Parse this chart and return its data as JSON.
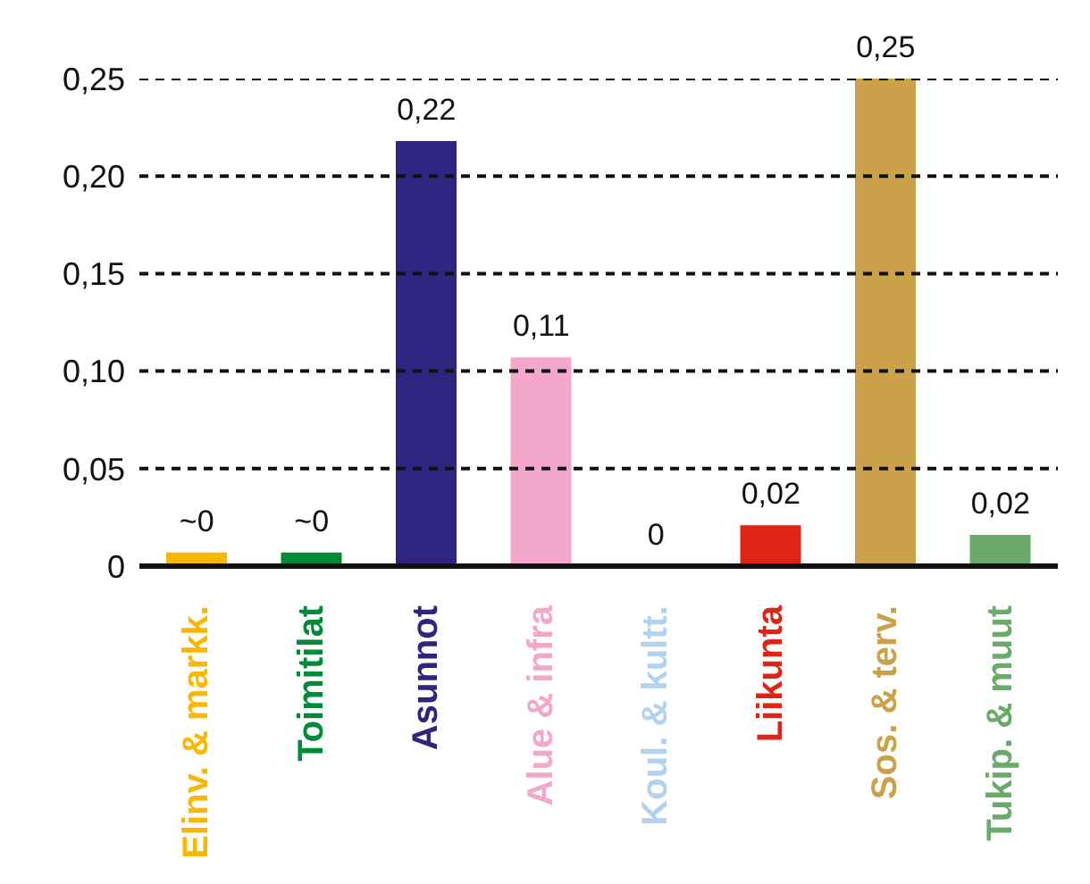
{
  "chart_data": {
    "type": "bar",
    "categories": [
      "Elinv. & markk.",
      "Toimitilat",
      "Asunnot",
      "Alue & infra",
      "Koul. & kultt.",
      "Liikunta",
      "Sos. & terv.",
      "Tukip. & muut"
    ],
    "values": [
      0.007,
      0.007,
      0.218,
      0.107,
      0,
      0.021,
      0.25,
      0.016
    ],
    "colors": [
      "#f9b800",
      "#008a3a",
      "#2f2580",
      "#f2a7cb",
      "#b3d2ee",
      "#de2415",
      "#cba14a",
      "#6aab6b"
    ],
    "value_labels": [
      "~0",
      "~0",
      "0,22",
      "0,11",
      "0",
      "0,02",
      "0,25",
      "0,02"
    ],
    "ylim": [
      0,
      0.25
    ],
    "yticks": [
      {
        "value": 0,
        "label": "0"
      },
      {
        "value": 0.05,
        "label": "0,05"
      },
      {
        "value": 0.1,
        "label": "0,10"
      },
      {
        "value": 0.15,
        "label": "0,15"
      },
      {
        "value": 0.2,
        "label": "0,20"
      },
      {
        "value": 0.25,
        "label": "0,25"
      }
    ],
    "grid": "y",
    "legend": false
  }
}
